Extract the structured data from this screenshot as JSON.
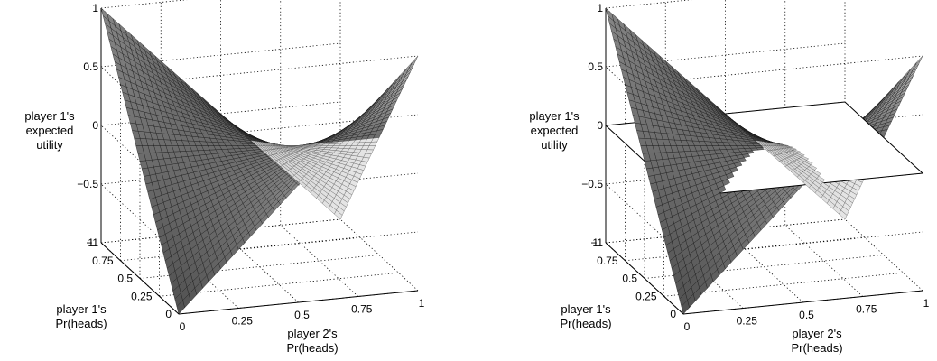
{
  "chart_data": [
    {
      "type": "surface",
      "title": "",
      "xlabel": [
        "player 2's",
        "Pr(heads)"
      ],
      "ylabel": [
        "player 1's",
        "Pr(heads)"
      ],
      "zlabel": [
        "player 1's",
        "expected",
        "utility"
      ],
      "x_ticks": [
        "0",
        "0.25",
        "0.5",
        "0.75",
        "1"
      ],
      "y_ticks": [
        "0",
        "0.25",
        "0.5",
        "0.75",
        "1"
      ],
      "z_ticks": [
        "−1",
        "−0.5",
        "0",
        "0.5",
        "1"
      ],
      "xlim": [
        0,
        1
      ],
      "ylim": [
        0,
        1
      ],
      "zlim": [
        -1,
        1
      ],
      "grid": true,
      "surface": "z = (2p - 1)(1 - 2q), p = player 1's Pr(heads), q = player 2's Pr(heads)",
      "corners": [
        {
          "p": 0,
          "q": 0,
          "z": -1
        },
        {
          "p": 0,
          "q": 1,
          "z": 1
        },
        {
          "p": 1,
          "q": 0,
          "z": 1
        },
        {
          "p": 1,
          "q": 1,
          "z": -1
        }
      ],
      "plane": null
    },
    {
      "type": "surface",
      "title": "",
      "xlabel": [
        "player 2's",
        "Pr(heads)"
      ],
      "ylabel": [
        "player 1's",
        "Pr(heads)"
      ],
      "zlabel": [
        "player 1's",
        "expected",
        "utility"
      ],
      "x_ticks": [
        "0",
        "0.25",
        "0.5",
        "0.75",
        "1"
      ],
      "y_ticks": [
        "0",
        "0.25",
        "0.5",
        "0.75",
        "1"
      ],
      "z_ticks": [
        "−1",
        "−0.5",
        "0",
        "0.5",
        "1"
      ],
      "xlim": [
        0,
        1
      ],
      "ylim": [
        0,
        1
      ],
      "zlim": [
        -1,
        1
      ],
      "grid": true,
      "surface": "z = (2p - 1)(1 - 2q), p = player 1's Pr(heads), q = player 2's Pr(heads)",
      "corners": [
        {
          "p": 0,
          "q": 0,
          "z": -1
        },
        {
          "p": 0,
          "q": 1,
          "z": 1
        },
        {
          "p": 1,
          "q": 0,
          "z": 1
        },
        {
          "p": 1,
          "q": 1,
          "z": -1
        }
      ],
      "plane": {
        "z": 0,
        "color": "#ffffff"
      }
    }
  ]
}
